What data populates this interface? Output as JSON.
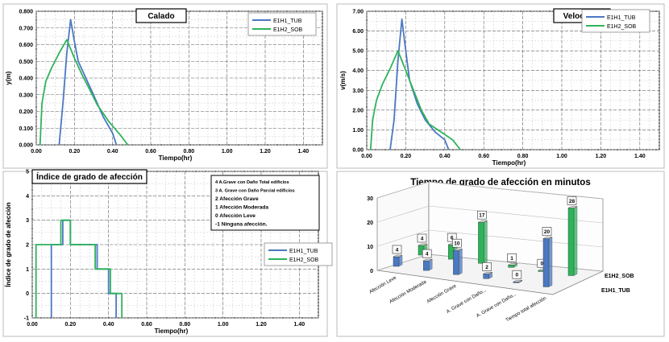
{
  "colors": {
    "tub": "#4a78c2",
    "sob": "#2eb35a",
    "grid": "#9a9a9a",
    "frame": "#000000"
  },
  "chart_data": [
    {
      "type": "line",
      "title": "Calado",
      "xlabel": "Tiempo(hr)",
      "ylabel": "y(m)",
      "xlim": [
        0,
        1.5
      ],
      "ylim": [
        0,
        0.8
      ],
      "xticks": [
        "0.00",
        "0.20",
        "0.40",
        "0.60",
        "0.80",
        "1.00",
        "1.20",
        "1.40"
      ],
      "yticks": [
        "0.000",
        "0.100",
        "0.200",
        "0.300",
        "0.400",
        "0.500",
        "0.600",
        "0.700",
        "0.800"
      ],
      "grid": true,
      "legend": "top-right",
      "series": [
        {
          "name": "E1H1_TUB",
          "x": [
            0.12,
            0.14,
            0.16,
            0.18,
            0.2,
            0.22,
            0.26,
            0.3,
            0.35,
            0.4,
            0.42
          ],
          "y": [
            0.0,
            0.25,
            0.55,
            0.75,
            0.62,
            0.5,
            0.4,
            0.3,
            0.17,
            0.07,
            0.0
          ]
        },
        {
          "name": "E1H2_SOB",
          "x": [
            0.02,
            0.03,
            0.05,
            0.08,
            0.12,
            0.16,
            0.2,
            0.24,
            0.28,
            0.32,
            0.38,
            0.44,
            0.48
          ],
          "y": [
            0.0,
            0.25,
            0.38,
            0.46,
            0.55,
            0.63,
            0.52,
            0.42,
            0.33,
            0.24,
            0.14,
            0.06,
            0.0
          ]
        }
      ]
    },
    {
      "type": "line",
      "title": "Velocidad",
      "xlabel": "Tiempo(hr)",
      "ylabel": "v(m/s)",
      "xlim": [
        0,
        1.5
      ],
      "ylim": [
        0,
        7
      ],
      "xticks": [
        "0.00",
        "0.20",
        "0.40",
        "0.60",
        "0.80",
        "1.00",
        "1.20",
        "1.40"
      ],
      "yticks": [
        "0.00",
        "1.00",
        "2.00",
        "3.00",
        "4.00",
        "5.00",
        "6.00",
        "7.00"
      ],
      "grid": true,
      "legend": "top-right",
      "series": [
        {
          "name": "E1H1_TUB",
          "x": [
            0.12,
            0.14,
            0.16,
            0.18,
            0.2,
            0.22,
            0.26,
            0.3,
            0.35,
            0.4,
            0.42
          ],
          "y": [
            0.0,
            1.5,
            4.5,
            6.6,
            5.0,
            3.5,
            2.3,
            1.5,
            0.9,
            0.5,
            0.0
          ]
        },
        {
          "name": "E1H2_SOB",
          "x": [
            0.02,
            0.03,
            0.05,
            0.08,
            0.12,
            0.16,
            0.2,
            0.24,
            0.28,
            0.32,
            0.38,
            0.44,
            0.48
          ],
          "y": [
            0.0,
            1.5,
            2.5,
            3.3,
            4.1,
            5.0,
            4.0,
            3.0,
            2.0,
            1.3,
            0.9,
            0.5,
            0.0
          ]
        }
      ]
    },
    {
      "type": "line",
      "title": "Índice de grado de afección",
      "xlabel": "Tiempo(hr)",
      "ylabel": "Índice de grado de afección",
      "xlim": [
        0,
        1.5
      ],
      "ylim": [
        -1,
        5
      ],
      "xticks": [
        "0.00",
        "0.20",
        "0.40",
        "0.60",
        "0.80",
        "1.00",
        "1.20",
        "1.40"
      ],
      "yticks": [
        "-1",
        "0",
        "1",
        "2",
        "3",
        "4",
        "5"
      ],
      "grid": true,
      "legend": "right",
      "annotation": [
        "4  A.Grave con Daño Total edificios",
        "3  A. Grave con Daño Parcial edificios",
        "2  Afección Grave",
        "1  Afección Moderada",
        "0  Afección Leve",
        "-1  Ninguna afección."
      ],
      "series": [
        {
          "name": "E1H1_TUB",
          "x": [
            0.1,
            0.1,
            0.14,
            0.14,
            0.16,
            0.16,
            0.2,
            0.2,
            0.34,
            0.34,
            0.4,
            0.4,
            0.44,
            0.44
          ],
          "y": [
            -1,
            2,
            2,
            2,
            2,
            3,
            3,
            2,
            2,
            1,
            1,
            0,
            0,
            -1
          ]
        },
        {
          "name": "E1H2_SOB",
          "x": [
            0.02,
            0.02,
            0.15,
            0.15,
            0.2,
            0.2,
            0.33,
            0.33,
            0.41,
            0.41,
            0.47,
            0.47
          ],
          "y": [
            -1,
            2,
            2,
            3,
            3,
            2,
            2,
            1,
            1,
            0,
            0,
            -1
          ]
        }
      ]
    },
    {
      "type": "bar",
      "title": "Tiempo de grado de afección en minutos",
      "categories": [
        "Afección Leve",
        "Afección Moderada",
        "Afección Grave",
        "A. Grave con Daño...",
        "A. Grave con Daño...",
        "Tiempo total afección"
      ],
      "yticks": [
        "0",
        "10",
        "20",
        "30"
      ],
      "ylim": [
        0,
        30
      ],
      "legend": "right",
      "series": [
        {
          "name": "E1H1_TUB",
          "values": [
            4,
            4,
            10,
            2,
            0,
            20
          ]
        },
        {
          "name": "E1H2_SOB",
          "values": [
            4,
            6,
            17,
            1,
            0,
            28
          ]
        }
      ]
    }
  ]
}
